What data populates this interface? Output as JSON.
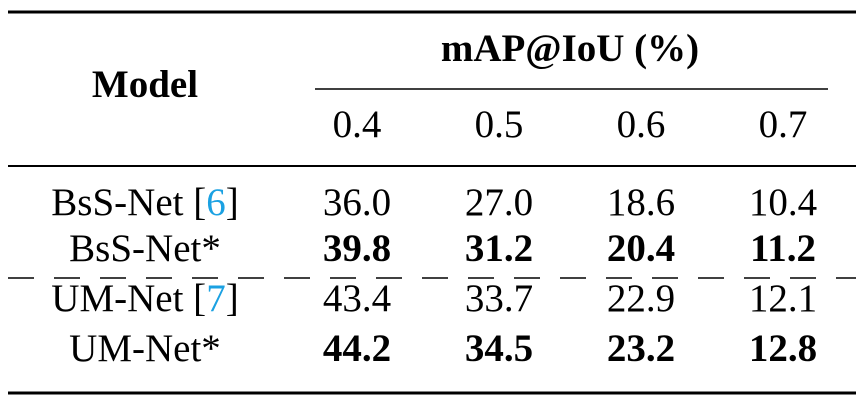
{
  "table": {
    "header": {
      "model": "Model",
      "group": "mAP@IoU (%)",
      "thresholds": [
        "0.4",
        "0.5",
        "0.6",
        "0.7"
      ]
    },
    "rows": [
      {
        "label": [
          "BsS-Net [",
          "6",
          "]"
        ],
        "bold": false,
        "cells": [
          "36.0",
          "27.0",
          "18.6",
          "10.4"
        ]
      },
      {
        "label": [
          "BsS-Net*"
        ],
        "bold": true,
        "cells": [
          "39.8",
          "31.2",
          "20.4",
          "11.2"
        ]
      },
      {
        "label": [
          "UM-Net [",
          "7",
          "]"
        ],
        "bold": false,
        "cells": [
          "43.4",
          "33.7",
          "22.9",
          "12.1"
        ]
      },
      {
        "label": [
          "UM-Net*"
        ],
        "bold": true,
        "cells": [
          "44.2",
          "34.5",
          "23.2",
          "12.8"
        ]
      }
    ]
  }
}
